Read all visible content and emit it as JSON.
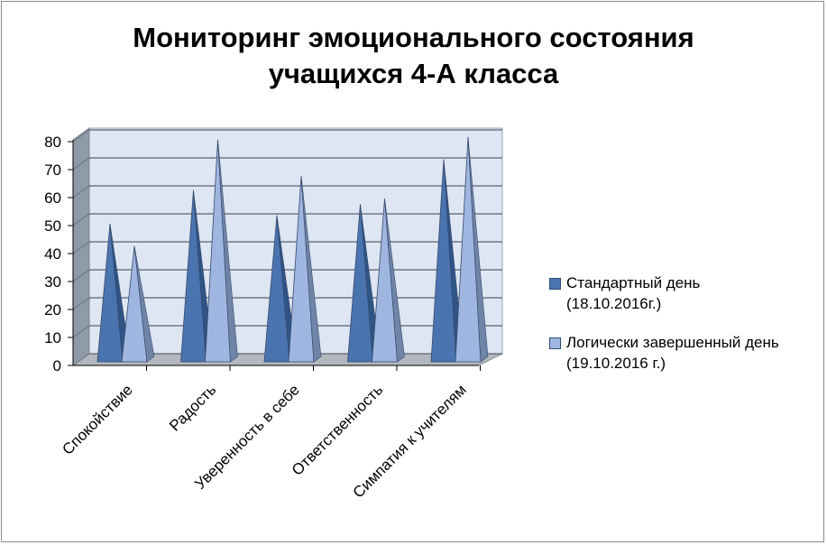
{
  "chart_data": {
    "type": "bar",
    "title_lines": [
      "Мониторинг эмоционального состояния",
      "учащихся 4-А класса"
    ],
    "categories": [
      "Спокойствие",
      "Радость",
      "Уверенность в себе",
      "Ответственность",
      "Симпатия к учителям"
    ],
    "series": [
      {
        "name_lines": [
          "Стандартный день",
          "(18.10.2016г.)"
        ],
        "values": [
          50,
          62,
          53,
          57,
          73
        ],
        "color": "#4a74b0"
      },
      {
        "name_lines": [
          "Логически завершенный день",
          "(19.10.2016 г.)"
        ],
        "values": [
          42,
          80,
          67,
          59,
          81
        ],
        "color": "#9fb7e0"
      }
    ],
    "yticks": [
      "0",
      "10",
      "20",
      "30",
      "40",
      "50",
      "60",
      "70",
      "80"
    ],
    "ylim": [
      0,
      80
    ],
    "grid": true,
    "legend_position": "right",
    "shape": "3d-cone"
  }
}
